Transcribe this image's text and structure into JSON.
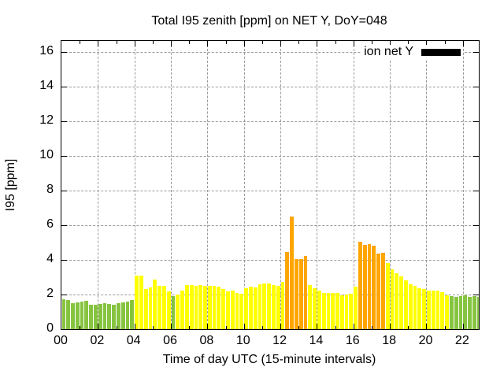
{
  "chart_data": {
    "type": "bar",
    "title": "Total I95 zenith [ppm] on NET Y, DoY=048",
    "xlabel": "Time of day UTC (15-minute intervals)",
    "ylabel": "I95 [ppm]",
    "ylim": [
      0,
      16
    ],
    "xlim_hours": [
      0,
      22.87
    ],
    "grid": true,
    "grid_color": "#999999",
    "background": "#FFFFFF",
    "legend": {
      "label": "ion net Y",
      "swatch_color": "#000000",
      "position": "top-right"
    },
    "colors": {
      "low": "#86C440",
      "mid": "#FFFF00",
      "high": "#FFA500"
    },
    "ytick_labels": [
      "0",
      "2",
      "4",
      "6",
      "8",
      "10",
      "12",
      "14",
      "16"
    ],
    "ytick_values": [
      0,
      2,
      4,
      6,
      8,
      10,
      12,
      14,
      16
    ],
    "xtick_labels": [
      "00",
      "02",
      "04",
      "06",
      "08",
      "10",
      "12",
      "14",
      "16",
      "18",
      "20",
      "22"
    ],
    "xtick_hours": [
      0,
      2,
      4,
      6,
      8,
      10,
      12,
      14,
      16,
      18,
      20,
      22
    ],
    "minor_xtick_every_hours": 1,
    "interval_minutes": 15,
    "times": [
      "00:00",
      "00:15",
      "00:30",
      "00:45",
      "01:00",
      "01:15",
      "01:30",
      "01:45",
      "02:00",
      "02:15",
      "02:30",
      "02:45",
      "03:00",
      "03:15",
      "03:30",
      "03:45",
      "04:00",
      "04:15",
      "04:30",
      "04:45",
      "05:00",
      "05:15",
      "05:30",
      "05:45",
      "06:00",
      "06:15",
      "06:30",
      "06:45",
      "07:00",
      "07:15",
      "07:30",
      "07:45",
      "08:00",
      "08:15",
      "08:30",
      "08:45",
      "09:00",
      "09:15",
      "09:30",
      "09:45",
      "10:00",
      "10:15",
      "10:30",
      "10:45",
      "11:00",
      "11:15",
      "11:30",
      "11:45",
      "12:00",
      "12:15",
      "12:30",
      "12:45",
      "13:00",
      "13:15",
      "13:30",
      "13:45",
      "14:00",
      "14:15",
      "14:30",
      "14:45",
      "15:00",
      "15:15",
      "15:30",
      "15:45",
      "16:00",
      "16:15",
      "16:30",
      "16:45",
      "17:00",
      "17:15",
      "17:30",
      "17:45",
      "18:00",
      "18:15",
      "18:30",
      "18:45",
      "19:00",
      "19:15",
      "19:30",
      "19:45",
      "20:00",
      "20:15",
      "20:30",
      "20:45",
      "21:00",
      "21:15",
      "21:30",
      "21:45",
      "22:00",
      "22:15",
      "22:30",
      "22:45"
    ],
    "values": [
      1.75,
      1.7,
      1.5,
      1.55,
      1.6,
      1.65,
      1.4,
      1.4,
      1.45,
      1.5,
      1.45,
      1.4,
      1.5,
      1.55,
      1.6,
      1.7,
      3.1,
      3.1,
      2.3,
      2.4,
      2.85,
      2.5,
      2.5,
      2.2,
      1.9,
      2.0,
      2.25,
      2.55,
      2.55,
      2.5,
      2.55,
      2.5,
      2.5,
      2.5,
      2.45,
      2.3,
      2.2,
      2.25,
      2.1,
      2.05,
      2.35,
      2.45,
      2.4,
      2.6,
      2.65,
      2.65,
      2.55,
      2.5,
      2.75,
      4.45,
      6.5,
      4.05,
      4.05,
      4.25,
      2.55,
      2.35,
      2.25,
      2.1,
      2.1,
      2.1,
      2.1,
      1.95,
      2.0,
      2.05,
      2.45,
      5.05,
      4.85,
      4.9,
      4.8,
      4.35,
      4.4,
      3.8,
      3.45,
      3.25,
      3.05,
      2.8,
      2.6,
      2.5,
      2.35,
      2.3,
      2.25,
      2.25,
      2.25,
      2.15,
      1.95,
      1.9,
      1.85,
      1.9,
      1.95,
      1.85,
      1.9,
      1.85
    ],
    "levels": [
      "low",
      "low",
      "low",
      "low",
      "low",
      "low",
      "low",
      "low",
      "low",
      "low",
      "low",
      "low",
      "low",
      "low",
      "low",
      "low",
      "mid",
      "mid",
      "mid",
      "mid",
      "mid",
      "mid",
      "mid",
      "mid",
      "low",
      "mid",
      "mid",
      "mid",
      "mid",
      "mid",
      "mid",
      "mid",
      "mid",
      "mid",
      "mid",
      "mid",
      "mid",
      "mid",
      "mid",
      "mid",
      "mid",
      "mid",
      "mid",
      "mid",
      "mid",
      "mid",
      "mid",
      "mid",
      "mid",
      "high",
      "high",
      "high",
      "high",
      "high",
      "mid",
      "mid",
      "mid",
      "mid",
      "mid",
      "mid",
      "mid",
      "mid",
      "mid",
      "mid",
      "mid",
      "high",
      "high",
      "high",
      "high",
      "high",
      "high",
      "mid",
      "mid",
      "mid",
      "mid",
      "mid",
      "mid",
      "mid",
      "mid",
      "mid",
      "mid",
      "mid",
      "mid",
      "mid",
      "mid",
      "low",
      "low",
      "low",
      "low",
      "low",
      "low",
      "low"
    ]
  }
}
